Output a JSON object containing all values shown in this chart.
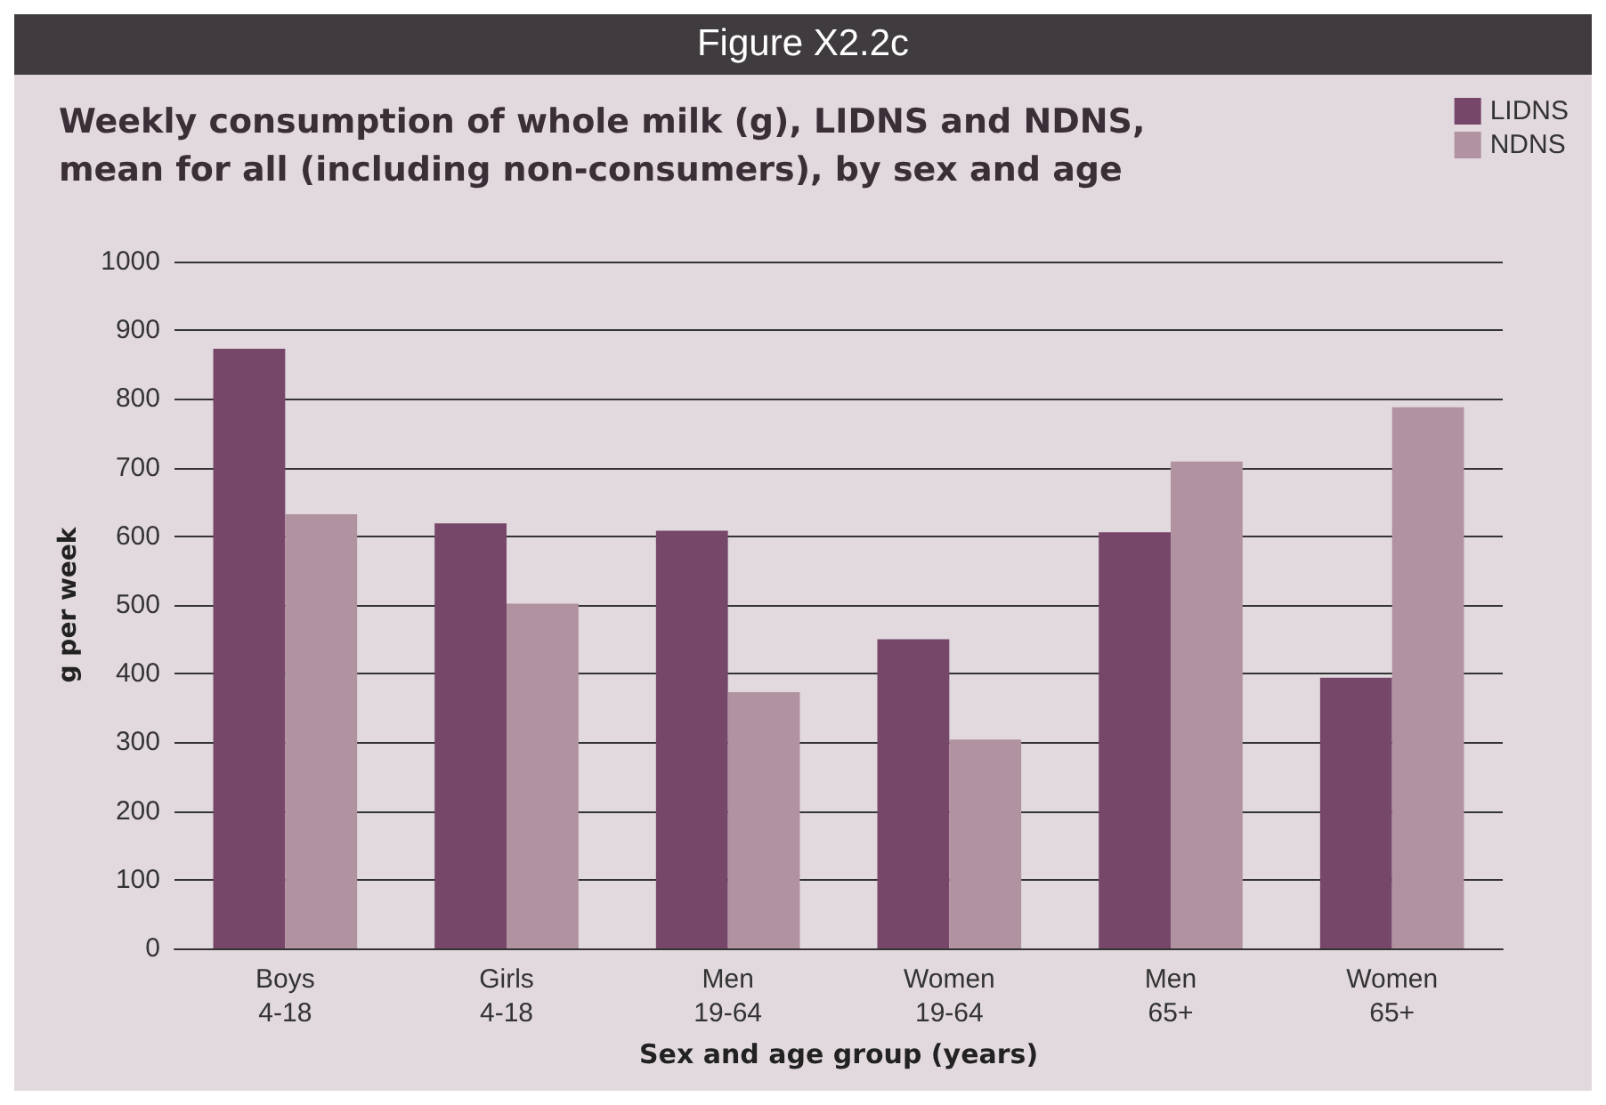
{
  "chart_data": {
    "type": "bar",
    "title": "Figure X2.2c",
    "subtitle": "Weekly consumption of whole milk (g), LIDNS and NDNS,\nmean for all (including non-consumers), by sex and age",
    "xlabel": "Sex and age group (years)",
    "ylabel": "g per week",
    "categories": [
      "Boys\n4-18",
      "Girls\n4-18",
      "Men\n19-64",
      "Women\n19-64",
      "Men\n65+",
      "Women\n65+"
    ],
    "series": [
      {
        "name": "LIDNS",
        "color": "#77476a",
        "values": [
          873,
          619,
          608,
          450,
          606,
          394
        ]
      },
      {
        "name": "NDNS",
        "color": "#b092a1",
        "values": [
          632,
          502,
          373,
          304,
          709,
          788
        ]
      }
    ],
    "ylim": [
      0,
      1000
    ],
    "yticks": [
      0,
      100,
      200,
      300,
      400,
      500,
      600,
      700,
      800,
      900,
      1000
    ],
    "grid": "y",
    "legend": "top right"
  }
}
